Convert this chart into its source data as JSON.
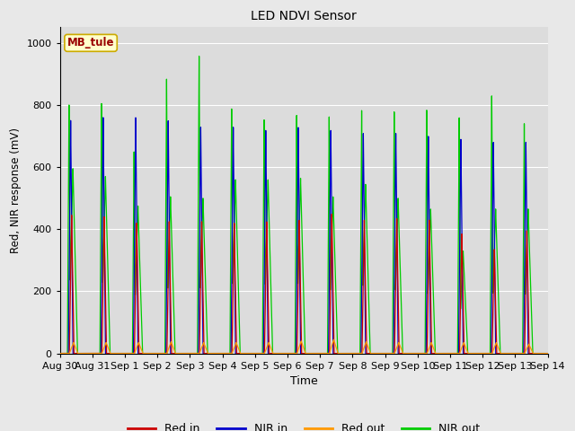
{
  "title": "LED NDVI Sensor",
  "xlabel": "Time",
  "ylabel": "Red, NIR response (mV)",
  "ylim": [
    0,
    1050
  ],
  "label_box": "MB_tule",
  "legend_entries": [
    "Red in",
    "NIR in",
    "Red out",
    "NIR out"
  ],
  "colors": {
    "red_in": "#cc0000",
    "nir_in": "#0000cc",
    "red_out": "#ff9900",
    "nir_out": "#00cc00"
  },
  "fig_bg": "#e8e8e8",
  "axes_bg": "#dcdcdc",
  "grid_color": "#ffffff",
  "num_cycles": 15,
  "peaks_nir_in": [
    750,
    760,
    760,
    750,
    730,
    730,
    720,
    730,
    720,
    710,
    710,
    700,
    690,
    680,
    680
  ],
  "peaks_red_in": [
    445,
    440,
    420,
    425,
    425,
    420,
    425,
    430,
    450,
    430,
    435,
    430,
    385,
    335,
    395
  ],
  "peaks_red_out": [
    35,
    35,
    35,
    38,
    35,
    35,
    35,
    40,
    45,
    38,
    35,
    35,
    35,
    35,
    30
  ],
  "peaks_nir_out_spike": [
    800,
    805,
    650,
    885,
    960,
    790,
    755,
    770,
    765,
    785,
    780,
    785,
    760,
    830,
    740
  ],
  "peaks_nir_out_broad": [
    595,
    570,
    475,
    505,
    500,
    560,
    560,
    565,
    505,
    545,
    500,
    465,
    330,
    465,
    465
  ],
  "xtick_labels": [
    "Aug 30",
    "Aug 31",
    "Sep 1",
    "Sep 2",
    "Sep 3",
    "Sep 4",
    "Sep 5",
    "Sep 6",
    "Sep 7",
    "Sep 8",
    "Sep 9",
    "Sep 10",
    "Sep 11",
    "Sep 12",
    "Sep 13",
    "Sep 14"
  ],
  "xtick_positions": [
    0,
    1,
    2,
    3,
    4,
    5,
    6,
    7,
    8,
    9,
    10,
    11,
    12,
    13,
    14,
    15
  ]
}
